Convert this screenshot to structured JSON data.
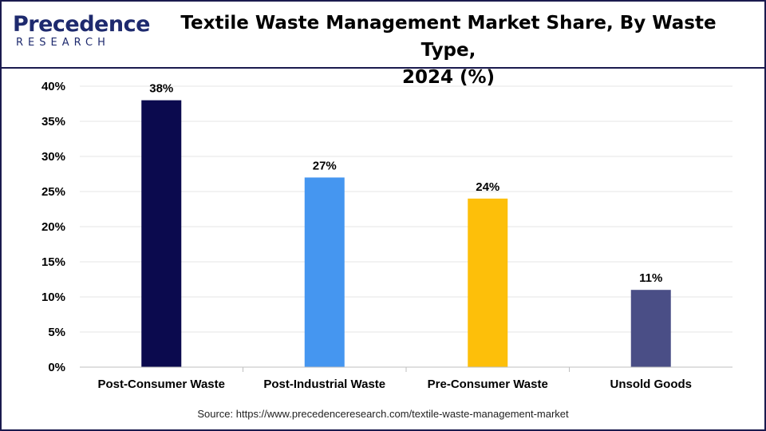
{
  "header": {
    "logo_top": "Precedence",
    "logo_bottom": "RESEARCH",
    "title_line1": "Textile Waste Management Market Share, By Waste Type,",
    "title_line2": "2024 (%)"
  },
  "source": "Source: https://www.precedenceresearch.com/textile-waste-management-market",
  "chart_data": {
    "type": "bar",
    "title": "Textile Waste Management Market Share, By Waste Type, 2024 (%)",
    "categories": [
      "Post-Consumer Waste",
      "Post-Industrial Waste",
      "Pre-Consumer Waste",
      "Unsold Goods"
    ],
    "values": [
      38,
      27,
      24,
      11
    ],
    "data_labels": [
      "38%",
      "27%",
      "24%",
      "11%"
    ],
    "colors": [
      "#0b0a4e",
      "#4596f0",
      "#fdbf0a",
      "#4a4e86"
    ],
    "ylim": [
      0,
      40
    ],
    "yticks": [
      0,
      5,
      10,
      15,
      20,
      25,
      30,
      35,
      40
    ],
    "ytick_labels": [
      "0%",
      "5%",
      "10%",
      "15%",
      "20%",
      "25%",
      "30%",
      "35%",
      "40%"
    ],
    "xlabel": "",
    "ylabel": "",
    "grid": true,
    "legend": "none"
  }
}
